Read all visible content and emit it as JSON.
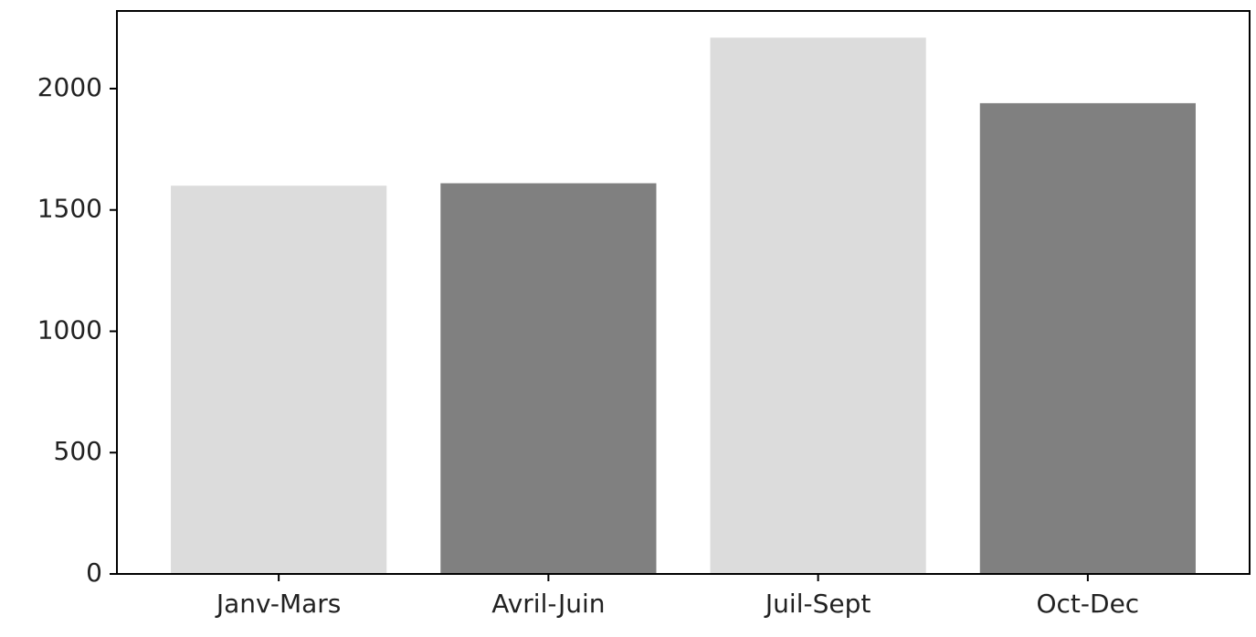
{
  "chart_data": {
    "type": "bar",
    "title": "",
    "xlabel": "",
    "ylabel": "",
    "categories": [
      "Janv-Mars",
      "Avril-Juin",
      "Juil-Sept",
      "Oct-Dec"
    ],
    "values": [
      1600,
      1610,
      2210,
      1940
    ],
    "bar_colors": [
      "#dcdcdc",
      "#808080",
      "#dcdcdc",
      "#808080"
    ],
    "ylim": [
      0,
      2320
    ],
    "yticks": [
      0,
      500,
      1000,
      1500,
      2000
    ],
    "ytick_labels": [
      "0",
      "500",
      "1000",
      "1500",
      "2000"
    ],
    "grid": false,
    "legend": "none"
  }
}
